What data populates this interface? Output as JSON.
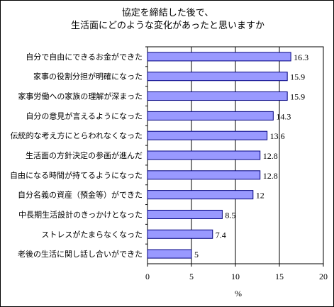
{
  "chart_data": {
    "type": "bar",
    "orientation": "horizontal",
    "title_lines": [
      "協定を締結した後で、",
      "生活面にどのような変化があったと思いますか"
    ],
    "categories": [
      "自分で自由にできるお金ができた",
      "家事の役割分担が明確になった",
      "家事労働への家族の理解が深まった",
      "自分の意見が言えるようになった",
      "伝統的な考え方にとらわれなくなった",
      "生活面の方針決定の参画が進んだ",
      "自由になる時間が持てるようになった",
      "自分名義の資産（預金等）ができた",
      "中長期生活設計のきっかけとなった",
      "ストレスがたまらなくなった",
      "老後の生活に関し話し合いができた"
    ],
    "values": [
      16.3,
      15.9,
      15.9,
      14.3,
      13.6,
      12.8,
      12.8,
      12,
      8.5,
      7.4,
      5
    ],
    "value_labels": [
      "16.3",
      "15.9",
      "15.9",
      "14.3",
      "13.6",
      "12.8",
      "12.8",
      "12",
      "8.5",
      "7.4",
      "5"
    ],
    "xlim": [
      0,
      20
    ],
    "xticks": [
      "0",
      "5",
      "10",
      "15",
      "20"
    ],
    "xlabel": "%",
    "grid": "vertical",
    "bar_color": "#9999ff",
    "bar_edge": "#000080"
  }
}
